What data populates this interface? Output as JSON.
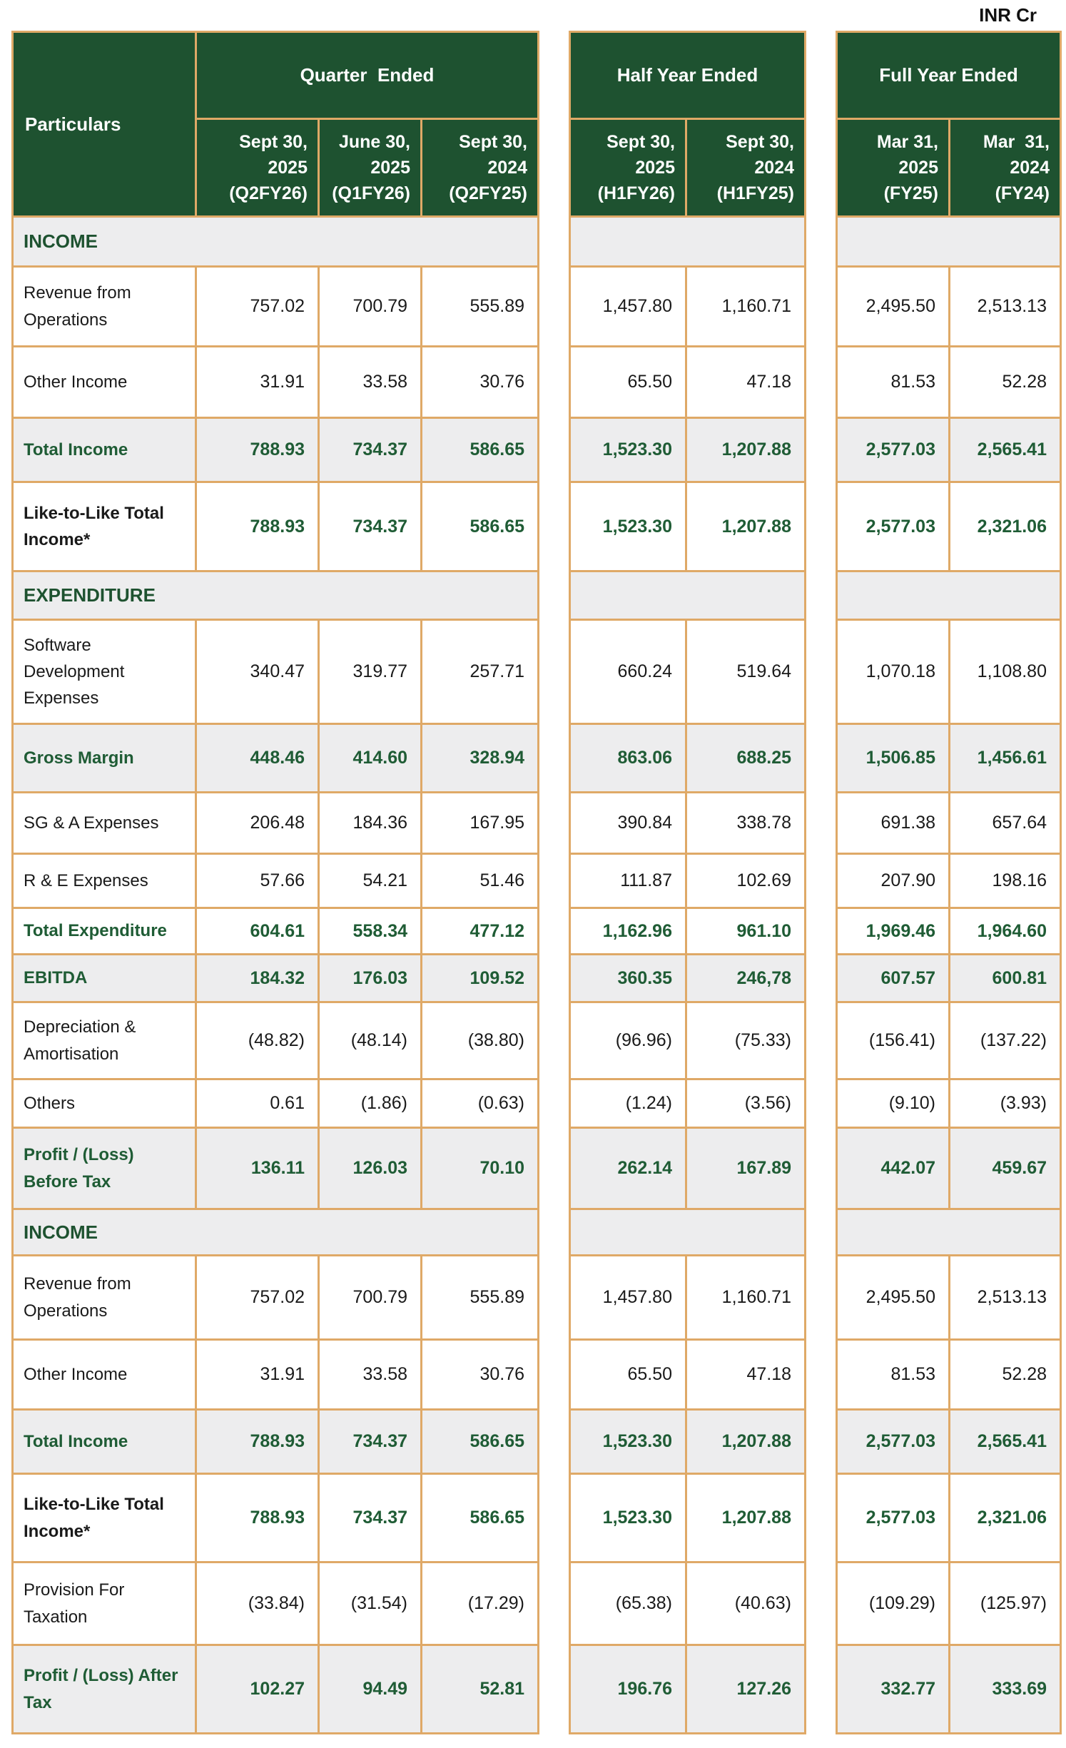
{
  "unit_label": "INR Cr",
  "table": {
    "header": {
      "particulars": "Particulars",
      "groups": [
        {
          "label": "Quarter  Ended",
          "cols": [
            "Sept 30,\n2025\n(Q2FY26)",
            "June 30,\n2025\n(Q1FY26)",
            "Sept 30,\n2024\n(Q2FY25)"
          ]
        },
        {
          "label": "Half Year Ended",
          "cols": [
            "Sept 30,\n2025\n(H1FY26)",
            "Sept 30,\n2024\n(H1FY25)"
          ]
        },
        {
          "label": "Full Year Ended",
          "cols": [
            "Mar 31,\n2025\n(FY25)",
            "Mar  31,\n2024\n(FY24)"
          ]
        }
      ]
    },
    "rows": [
      {
        "type": "section",
        "label": "INCOME",
        "values": []
      },
      {
        "type": "data",
        "label": "Revenue from Operations",
        "values": [
          "757.02",
          "700.79",
          "555.89",
          "1,457.80",
          "1,160.71",
          "2,495.50",
          "2,513.13"
        ]
      },
      {
        "type": "data",
        "label": "Other Income",
        "values": [
          "31.91",
          "33.58",
          "30.76",
          "65.50",
          "47.18",
          "81.53",
          "52.28"
        ]
      },
      {
        "type": "total",
        "label": "Total Income",
        "values": [
          "788.93",
          "734.37",
          "586.65",
          "1,523.30",
          "1,207.88",
          "2,577.03",
          "2,565.41"
        ]
      },
      {
        "type": "emphasis",
        "label": "Like-to-Like Total Income*",
        "values": [
          "788.93",
          "734.37",
          "586.65",
          "1,523.30",
          "1,207.88",
          "2,577.03",
          "2,321.06"
        ]
      },
      {
        "type": "section",
        "label": "EXPENDITURE",
        "values": []
      },
      {
        "type": "data",
        "label": "Software Development Expenses",
        "values": [
          "340.47",
          "319.77",
          "257.71",
          "660.24",
          "519.64",
          "1,070.18",
          "1,108.80"
        ]
      },
      {
        "type": "total",
        "label": "Gross Margin",
        "values": [
          "448.46",
          "414.60",
          "328.94",
          "863.06",
          "688.25",
          "1,506.85",
          "1,456.61"
        ]
      },
      {
        "type": "data",
        "label": "SG & A Expenses",
        "values": [
          "206.48",
          "184.36",
          "167.95",
          "390.84",
          "338.78",
          "691.38",
          "657.64"
        ]
      },
      {
        "type": "data",
        "label": "R & E Expenses",
        "values": [
          "57.66",
          "54.21",
          "51.46",
          "111.87",
          "102.69",
          "207.90",
          "198.16"
        ]
      },
      {
        "type": "total_plain",
        "label": "Total Expenditure",
        "values": [
          "604.61",
          "558.34",
          "477.12",
          "1,162.96",
          "961.10",
          "1,969.46",
          "1,964.60"
        ]
      },
      {
        "type": "total",
        "label": "EBITDA",
        "values": [
          "184.32",
          "176.03",
          "109.52",
          "360.35",
          "246,78",
          "607.57",
          "600.81"
        ]
      },
      {
        "type": "data",
        "label": "Depreciation & Amortisation",
        "values": [
          "(48.82)",
          "(48.14)",
          "(38.80)",
          "(96.96)",
          "(75.33)",
          "(156.41)",
          "(137.22)"
        ]
      },
      {
        "type": "data",
        "label": "Others",
        "values": [
          "0.61",
          "(1.86)",
          "(0.63)",
          "(1.24)",
          "(3.56)",
          "(9.10)",
          "(3.93)"
        ]
      },
      {
        "type": "total",
        "label": "Profit / (Loss) Before Tax",
        "values": [
          "136.11",
          "126.03",
          "70.10",
          "262.14",
          "167.89",
          "442.07",
          "459.67"
        ]
      },
      {
        "type": "section",
        "label": "INCOME",
        "values": []
      },
      {
        "type": "data",
        "label": "Revenue from Operations",
        "values": [
          "757.02",
          "700.79",
          "555.89",
          "1,457.80",
          "1,160.71",
          "2,495.50",
          "2,513.13"
        ]
      },
      {
        "type": "data",
        "label": "Other Income",
        "values": [
          "31.91",
          "33.58",
          "30.76",
          "65.50",
          "47.18",
          "81.53",
          "52.28"
        ]
      },
      {
        "type": "total",
        "label": "Total Income",
        "values": [
          "788.93",
          "734.37",
          "586.65",
          "1,523.30",
          "1,207.88",
          "2,577.03",
          "2,565.41"
        ]
      },
      {
        "type": "emphasis",
        "label": "Like-to-Like Total Income*",
        "values": [
          "788.93",
          "734.37",
          "586.65",
          "1,523.30",
          "1,207.88",
          "2,577.03",
          "2,321.06"
        ]
      },
      {
        "type": "data",
        "label": "Provision For Taxation",
        "values": [
          "(33.84)",
          "(31.54)",
          "(17.29)",
          "(65.38)",
          "(40.63)",
          "(109.29)",
          "(125.97)"
        ]
      },
      {
        "type": "total",
        "label": "Profit / (Loss) After Tax",
        "values": [
          "102.27",
          "94.49",
          "52.81",
          "196.76",
          "127.26",
          "332.77",
          "333.69"
        ]
      }
    ],
    "colors": {
      "header_green": "#1E5230",
      "accent_green_text": "#1F5C35",
      "border_tan": "#DFA967",
      "band_grey": "#EDEDEE"
    }
  }
}
